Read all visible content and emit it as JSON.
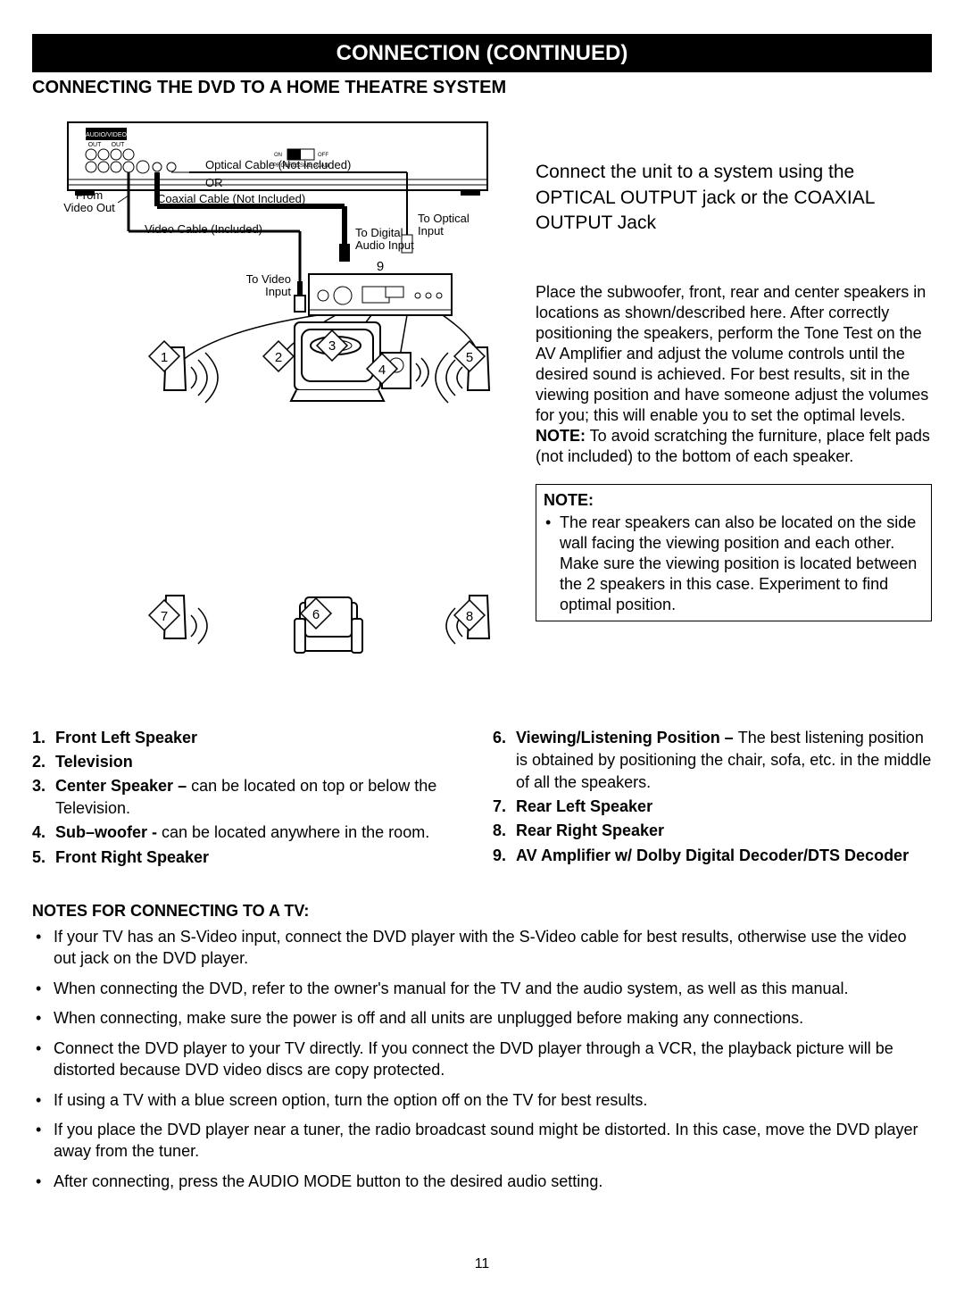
{
  "header": {
    "title": "CONNECTION (CONTINUED)"
  },
  "section": {
    "subtitle": "CONNECTING THE DVD TO A HOME THEATRE SYSTEM"
  },
  "diagram": {
    "labels": {
      "audio_video": "AUDIO/VIDEO",
      "out": "OUT",
      "optical_cable": "Optical Cable (Not Included)",
      "or": "OR",
      "coaxial_cable": "Coaxial Cable (Not Included)",
      "from_video_out": "From\nVideo Out",
      "video_cable": "Video Cable (Included)",
      "to_optical_input": "To Optical\nInput",
      "to_digital_audio_input": "To Digital\nAudio Input",
      "to_video_input": "To Video\nInput",
      "progressive_scan": "PROGRESSIVE SCAN",
      "on": "ON",
      "off": "OFF"
    },
    "callouts": [
      "1",
      "2",
      "3",
      "4",
      "5",
      "6",
      "7",
      "8",
      "9"
    ]
  },
  "right": {
    "connect": "Connect the unit to a system using the OPTICAL OUTPUT jack or the COAXIAL OUTPUT Jack",
    "placement": "Place the subwoofer, front, rear and center speakers in locations as shown/described here. After correctly positioning the speakers, perform the Tone Test on the AV Amplifier and adjust the volume controls until the desired sound is achieved. For best results, sit in the viewing position and have someone adjust the volumes for you; this will enable you to set the optimal levels.",
    "note_prefix": "NOTE:",
    "note_body": " To avoid scratching the furniture, place felt pads (not included) to the bottom of each speaker.",
    "box_header": "NOTE:",
    "box_item": "The rear speakers can also be located on the side wall facing the viewing position and each other. Make sure the viewing position is located between the 2 speakers in this case. Experiment to find optimal position."
  },
  "legend": {
    "left": [
      {
        "n": "1.",
        "lbl": "Front Left Speaker",
        "desc": ""
      },
      {
        "n": "2.",
        "lbl": "Television",
        "desc": ""
      },
      {
        "n": "3.",
        "lbl": "Center Speaker – ",
        "desc": "can be located on top or below the Television."
      },
      {
        "n": "4.",
        "lbl": "Sub–woofer - ",
        "desc": "can be located anywhere in the room."
      },
      {
        "n": "5.",
        "lbl": "Front Right Speaker",
        "desc": ""
      }
    ],
    "right": [
      {
        "n": "6.",
        "lbl": "Viewing/Listening Position – ",
        "desc": "The best listening position is obtained by positioning the chair, sofa, etc. in the middle of all the speakers."
      },
      {
        "n": "7.",
        "lbl": "Rear Left Speaker",
        "desc": ""
      },
      {
        "n": "8.",
        "lbl": "Rear Right Speaker",
        "desc": ""
      },
      {
        "n": "9.",
        "lbl": "AV Amplifier w/ Dolby Digital Decoder/DTS Decoder",
        "desc": ""
      }
    ]
  },
  "tv_notes": {
    "header": "NOTES FOR CONNECTING TO A TV:",
    "items": [
      "If your TV has an S-Video input, connect the DVD player with the S-Video cable for best results, otherwise use the video out jack on the DVD player.",
      "When connecting the DVD, refer to the owner's manual for the TV and the audio system, as well as this manual.",
      "When connecting, make sure the power is off and all units are unplugged before making any connections.",
      "Connect the DVD player to your TV directly. If you connect the DVD player through a VCR, the playback picture will be distorted because DVD video discs are copy protected.",
      "If using a TV with a blue screen option, turn the option off on the TV for best results.",
      "If you place the DVD player near a tuner, the radio broadcast sound might be distorted. In this case, move the DVD player away from the tuner.",
      "After connecting, press the AUDIO MODE button to the desired audio setting."
    ]
  },
  "page_number": "11"
}
